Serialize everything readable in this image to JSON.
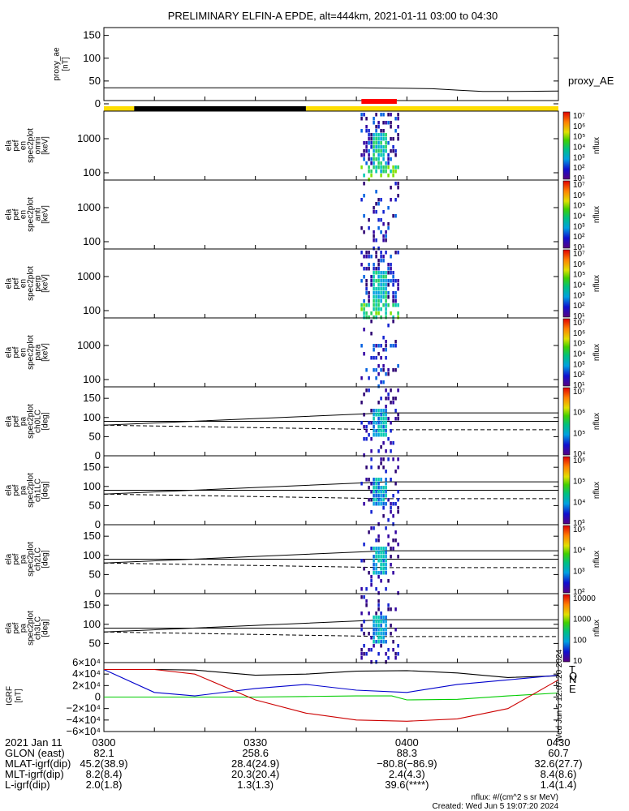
{
  "title": "PRELIMINARY ELFIN-A EPDE, alt=444km, 2021-01-11 03:00 to 04:30",
  "proxy_ae": {
    "ylabel_lines": [
      "proxy_ae",
      "[nT]"
    ],
    "legend": "proxy_AE",
    "y_ticks": [
      "150",
      "100",
      "50",
      "0"
    ]
  },
  "spectrogram_panels": [
    {
      "ylabel_lines": [
        "ela",
        "pef",
        "en",
        "spec2plot",
        "omni",
        "[keV]"
      ],
      "y_ticks": [
        "1000",
        "100"
      ],
      "cbar_ticks": [
        "10⁷",
        "10⁶",
        "10⁵",
        "10⁴",
        "10³",
        "10²",
        "10¹"
      ],
      "cbar_label": "nflux"
    },
    {
      "ylabel_lines": [
        "ela",
        "pef",
        "en",
        "spec2plot",
        "anti",
        "[keV]"
      ],
      "y_ticks": [
        "1000",
        "100"
      ],
      "cbar_ticks": [
        "10⁷",
        "10⁶",
        "10⁵",
        "10⁴",
        "10³",
        "10²",
        "10¹"
      ],
      "cbar_label": "nflux"
    },
    {
      "ylabel_lines": [
        "ela",
        "pef",
        "en",
        "spec2plot",
        "perp",
        "[keV]"
      ],
      "y_ticks": [
        "1000",
        "100"
      ],
      "cbar_ticks": [
        "10⁷",
        "10⁶",
        "10⁵",
        "10⁴",
        "10³",
        "10²",
        "10¹"
      ],
      "cbar_label": "nflux"
    },
    {
      "ylabel_lines": [
        "ela",
        "pef",
        "en",
        "spec2plot",
        "para",
        "[keV]"
      ],
      "y_ticks": [
        "1000",
        "100"
      ],
      "cbar_ticks": [
        "10⁷",
        "10⁶",
        "10⁵",
        "10⁴",
        "10³",
        "10²",
        "10¹"
      ],
      "cbar_label": "nflux"
    }
  ],
  "pa_panels": [
    {
      "ylabel_lines": [
        "ela",
        "pef",
        "pa",
        "spec2plot",
        "ch0LC",
        "[deg]"
      ],
      "y_ticks": [
        "150",
        "100",
        "50",
        "0"
      ],
      "cbar_ticks": [
        "10⁷",
        "10⁶",
        "10⁵",
        "10⁴"
      ],
      "cbar_label": "nflux"
    },
    {
      "ylabel_lines": [
        "ela",
        "pef",
        "pa",
        "spec2plot",
        "ch1LC",
        "[deg]"
      ],
      "y_ticks": [
        "150",
        "100",
        "50",
        "0"
      ],
      "cbar_ticks": [
        "10⁶",
        "10⁵",
        "10⁴",
        "10³"
      ],
      "cbar_label": "nflux"
    },
    {
      "ylabel_lines": [
        "ela",
        "pef",
        "pa",
        "spec2plot",
        "ch2LC",
        "[deg]"
      ],
      "y_ticks": [
        "150",
        "100",
        "50",
        "0"
      ],
      "cbar_ticks": [
        "10⁵",
        "10⁴",
        "10³",
        "10²"
      ],
      "cbar_label": "nflux"
    },
    {
      "ylabel_lines": [
        "ela",
        "pef",
        "pa",
        "spec2plot",
        "ch3LC",
        "[deg]"
      ],
      "y_ticks": [
        "150",
        "100",
        "50"
      ],
      "cbar_ticks": [
        "10000",
        "1000",
        "100",
        "10"
      ],
      "cbar_label": "nflux"
    }
  ],
  "igrf": {
    "ylabel_lines": [
      "IGRF",
      "[nT]"
    ],
    "y_ticks": [
      "6×10⁴",
      "4×10⁴",
      "2×10⁴",
      "0",
      "−2×10⁴",
      "−4×10⁴",
      "−6×10⁴"
    ],
    "legend": [
      "T",
      "N",
      "E"
    ],
    "legend_colors": [
      "#000000",
      "#0000cc",
      "#00cc00"
    ],
    "extra_legend": "O",
    "extra_color": "#cc0000",
    "side_note": "Wed Jun  5 12:07:20 2024"
  },
  "ephemeris": {
    "rows": [
      {
        "label": "2021 Jan 11",
        "values": [
          "0300",
          "0330",
          "0400",
          "0430"
        ]
      },
      {
        "label": "GLON (east)",
        "values": [
          "82.1",
          "258.6",
          "88.3",
          "60.7"
        ]
      },
      {
        "label": "MLAT-igrf(dip)",
        "values": [
          "45.2(38.9)",
          "28.4(24.9)",
          "−80.8(−86.9)",
          "32.6(27.7)"
        ]
      },
      {
        "label": "MLT-igrf(dip)",
        "values": [
          "8.2(8.4)",
          "20.3(20.4)",
          "2.4(4.3)",
          "8.4(8.6)"
        ]
      },
      {
        "label": "L-igrf(dip)",
        "values": [
          "2.0(1.8)",
          "1.3(1.3)",
          "39.6(****)",
          "1.4(1.4)"
        ]
      }
    ]
  },
  "footer": {
    "units": "nflux: #/(cm^2 s sr MeV)",
    "created": "Created: Wed Jun  5 19:07:20 2024"
  },
  "colors": {
    "bar_yellow": "#ffdd00",
    "bar_black": "#000000",
    "bar_red": "#ff0000"
  },
  "chart_data": {
    "type": "heatmap",
    "time_range": [
      "03:00",
      "04:30"
    ],
    "x_tick_labels": [
      "0300",
      "0330",
      "0400",
      "0430"
    ],
    "proxy_ae": {
      "type": "line",
      "x": [
        "03:00",
        "03:10",
        "03:20",
        "03:30",
        "03:40",
        "03:50",
        "04:00",
        "04:05",
        "04:10",
        "04:15",
        "04:20",
        "04:30"
      ],
      "values": [
        35,
        35,
        35,
        35,
        35,
        35,
        34,
        33,
        30,
        27,
        27,
        28
      ],
      "ylim": [
        0,
        160
      ]
    },
    "status_bar": {
      "yellow_segments": [
        [
          "03:00",
          "03:06"
        ],
        [
          "03:40",
          "04:30"
        ]
      ],
      "black_segments": [
        [
          "03:06",
          "03:40"
        ]
      ],
      "red_segments": [
        [
          "03:51",
          "03:58"
        ]
      ]
    },
    "science_interval": [
      "03:51",
      "03:58"
    ],
    "igrf_series": [
      {
        "name": "T",
        "color": "#000000",
        "x": [
          "03:00",
          "03:10",
          "03:18",
          "03:30",
          "03:40",
          "03:50",
          "04:00",
          "04:10",
          "04:20",
          "04:30"
        ],
        "values": [
          48000,
          48000,
          47000,
          38000,
          40000,
          45000,
          46000,
          42000,
          34000,
          37000
        ]
      },
      {
        "name": "N",
        "color": "#0000cc",
        "x": [
          "03:00",
          "03:10",
          "03:18",
          "03:30",
          "03:40",
          "03:50",
          "04:00",
          "04:10",
          "04:20",
          "04:30"
        ],
        "values": [
          48000,
          8000,
          2000,
          15000,
          22000,
          12000,
          8000,
          22000,
          30000,
          38000
        ]
      },
      {
        "name": "E",
        "color": "#00cc00",
        "x": [
          "03:00",
          "03:10",
          "03:18",
          "03:30",
          "03:40",
          "03:50",
          "03:57",
          "04:00",
          "04:10",
          "04:20",
          "04:30"
        ],
        "values": [
          0,
          0,
          0,
          0,
          1000,
          2000,
          2000,
          -5000,
          -4000,
          2000,
          7000
        ]
      },
      {
        "name": "O",
        "color": "#cc0000",
        "x": [
          "03:00",
          "03:10",
          "03:18",
          "03:30",
          "03:40",
          "03:50",
          "04:00",
          "04:10",
          "04:20",
          "04:30"
        ],
        "values": [
          48000,
          48000,
          40000,
          -5000,
          -28000,
          -40000,
          -42000,
          -38000,
          -20000,
          30000
        ]
      }
    ],
    "igrf_ylim": [
      -60000,
      60000
    ]
  }
}
